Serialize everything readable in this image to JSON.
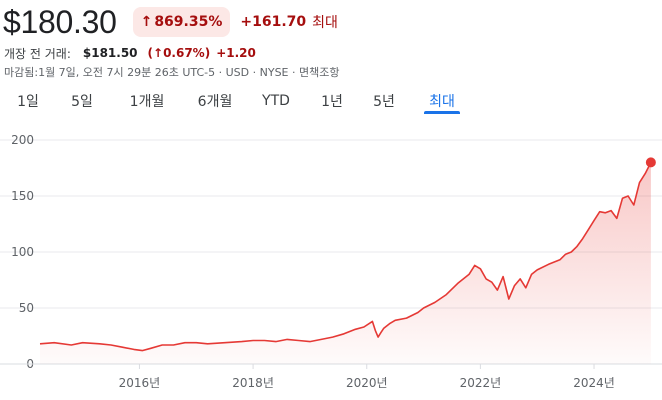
{
  "header": {
    "price": "$180.30",
    "change_pct": "869.35%",
    "change_abs": "+161.70",
    "period_label": "최대",
    "arrow_icon": "arrow-up-icon"
  },
  "premarket": {
    "label": "개장 전 거래:",
    "price": "$181.50",
    "pct": "(↑0.67%)",
    "change": "+1.20"
  },
  "meta": "마감됨:1월 7일, 오전 7시 29분 26초 UTC-5 · USD · NYSE · 면책조항",
  "tabs": [
    {
      "label": "1일",
      "active": false
    },
    {
      "label": "5일",
      "active": false
    },
    {
      "label": "1개월",
      "active": false
    },
    {
      "label": "6개월",
      "active": false
    },
    {
      "label": "YTD",
      "active": false
    },
    {
      "label": "1년",
      "active": false
    },
    {
      "label": "5년",
      "active": false
    },
    {
      "label": "최대",
      "active": true
    }
  ],
  "colors": {
    "line": "#e53935",
    "fill": "#fde0dd",
    "grid": "#e8eaed",
    "accent": "#1a73e8",
    "negative": "#a50e0e"
  },
  "chart_data": {
    "type": "area",
    "title": "",
    "xlabel": "",
    "ylabel": "",
    "ylim": [
      0,
      200
    ],
    "y_ticks": [
      0,
      50,
      100,
      150,
      200
    ],
    "x_range": [
      2014.25,
      2025.02
    ],
    "x_ticks": [
      {
        "value": 2016,
        "label": "2016년"
      },
      {
        "value": 2018,
        "label": "2018년"
      },
      {
        "value": 2020,
        "label": "2020년"
      },
      {
        "value": 2022,
        "label": "2022년"
      },
      {
        "value": 2024,
        "label": "2024년"
      }
    ],
    "grid": true,
    "series": [
      {
        "x": [
          2014.25,
          2014.5,
          2014.8,
          2015.0,
          2015.3,
          2015.5,
          2015.7,
          2015.9,
          2016.05,
          2016.2,
          2016.4,
          2016.6,
          2016.8,
          2017.0,
          2017.2,
          2017.5,
          2017.8,
          2018.0,
          2018.2,
          2018.4,
          2018.6,
          2018.8,
          2019.0,
          2019.2,
          2019.4,
          2019.6,
          2019.8,
          2019.95,
          2020.1,
          2020.15,
          2020.2,
          2020.25,
          2020.3,
          2020.4,
          2020.5,
          2020.7,
          2020.9,
          2021.0,
          2021.2,
          2021.4,
          2021.6,
          2021.8,
          2021.9,
          2022.0,
          2022.1,
          2022.2,
          2022.3,
          2022.4,
          2022.5,
          2022.6,
          2022.7,
          2022.8,
          2022.9,
          2023.0,
          2023.2,
          2023.4,
          2023.5,
          2023.6,
          2023.7,
          2023.8,
          2023.9,
          2024.0,
          2024.1,
          2024.2,
          2024.3,
          2024.4,
          2024.5,
          2024.6,
          2024.7,
          2024.8,
          2024.9,
          2025.0
        ],
        "values": [
          18,
          19,
          17,
          19,
          18,
          17,
          15,
          13,
          12,
          14,
          17,
          17,
          19,
          19,
          18,
          19,
          20,
          21,
          21,
          20,
          22,
          21,
          20,
          22,
          24,
          27,
          31,
          33,
          38,
          30,
          24,
          28,
          32,
          36,
          39,
          41,
          46,
          50,
          55,
          62,
          72,
          80,
          88,
          85,
          76,
          73,
          66,
          78,
          58,
          70,
          76,
          68,
          80,
          84,
          89,
          93,
          98,
          100,
          105,
          112,
          120,
          128,
          136,
          135,
          137,
          130,
          148,
          150,
          142,
          162,
          170,
          180
        ]
      }
    ]
  }
}
